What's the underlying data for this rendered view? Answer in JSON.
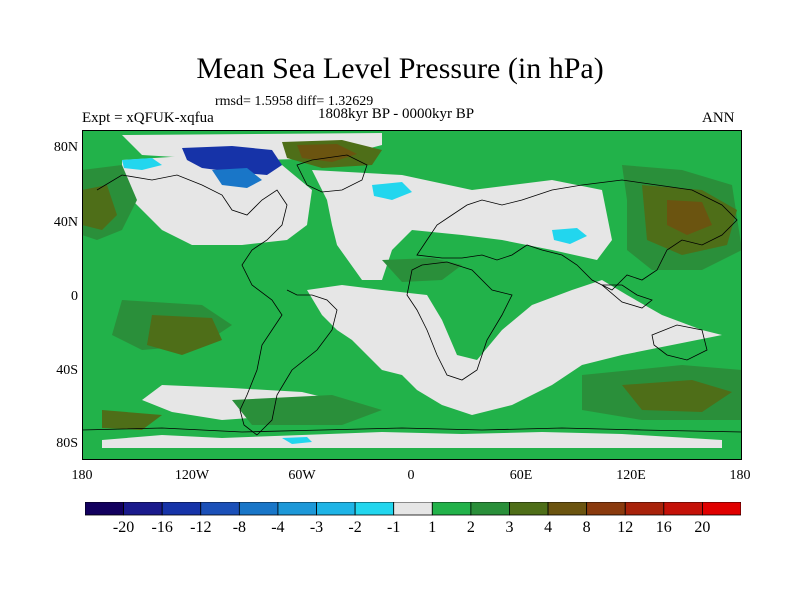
{
  "figure": {
    "title": "Mean Sea Level Pressure (in hPa)",
    "stats_line": "rmsd= 1.5958 diff= 1.32629",
    "period": "1808kyr BP - 0000kyr BP",
    "experiment": "Expt = xQFUK-xqfua",
    "season": "ANN"
  },
  "map": {
    "lat_ticks": [
      "80N",
      "40N",
      "0",
      "40S",
      "80S"
    ],
    "lon_ticks": [
      "180",
      "120W",
      "60W",
      "0",
      "60E",
      "120E",
      "180"
    ]
  },
  "colorbar": {
    "labels": [
      "-20",
      "-16",
      "-12",
      "-8",
      "-4",
      "-3",
      "-2",
      "-1",
      "1",
      "2",
      "3",
      "4",
      "8",
      "12",
      "16",
      "20"
    ],
    "colors": [
      "#12005e",
      "#1a1a8c",
      "#1633a8",
      "#1b50b8",
      "#1976c8",
      "#1d98d8",
      "#1eb4e6",
      "#22d6ee",
      "#e6e6e6",
      "#22b24a",
      "#2a8f3a",
      "#4e6e18",
      "#6b5410",
      "#8a3a0e",
      "#a8220a",
      "#c41108",
      "#e00000"
    ],
    "palette": {
      "neutral": "#e6e6e6",
      "green": "#22b24a",
      "dark_green": "#2a8f3a",
      "olive": "#4e6e18",
      "brown": "#6b5410",
      "cyan": "#22d6ee",
      "blue": "#1976c8",
      "navy": "#1633a8",
      "coast": "#000000"
    }
  }
}
